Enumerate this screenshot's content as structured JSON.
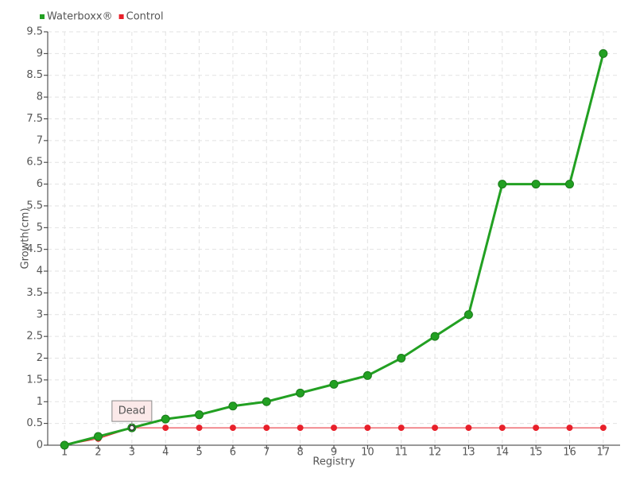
{
  "chart_data": {
    "type": "line",
    "x_label": "Registry",
    "y_label": "Growth(cm)",
    "categories": [
      1,
      2,
      3,
      4,
      5,
      6,
      7,
      8,
      9,
      10,
      11,
      12,
      13,
      14,
      15,
      16,
      17
    ],
    "series": [
      {
        "name": "Waterboxx®",
        "color": "#22a022",
        "values": [
          0,
          0.2,
          0.4,
          0.6,
          0.7,
          0.9,
          1.0,
          1.2,
          1.4,
          1.6,
          2,
          2.5,
          3,
          6,
          6,
          6,
          9
        ]
      },
      {
        "name": "Control",
        "color": "#e8202a",
        "values": [
          0,
          0.15,
          0.4,
          0.4,
          0.4,
          0.4,
          0.4,
          0.4,
          0.4,
          0.4,
          0.4,
          0.4,
          0.4,
          0.4,
          0.4,
          0.4,
          0.4
        ]
      }
    ],
    "ylim": [
      0,
      9.5
    ],
    "yticks": [
      0,
      0.5,
      1,
      1.5,
      2,
      2.5,
      3,
      3.5,
      4,
      4.5,
      5,
      5.5,
      6,
      6.5,
      7,
      7.5,
      8,
      8.5,
      9,
      9.5
    ],
    "grid": true,
    "legend": "top-left",
    "annotations": [
      {
        "text": "Dead",
        "x": 3
      }
    ]
  }
}
